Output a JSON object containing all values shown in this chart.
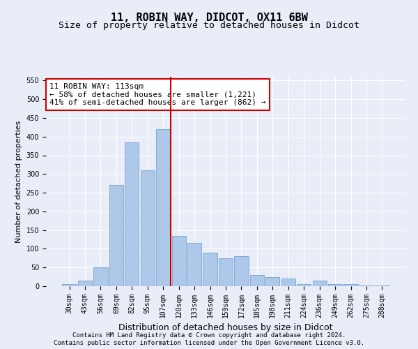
{
  "title_line1": "11, ROBIN WAY, DIDCOT, OX11 6BW",
  "title_line2": "Size of property relative to detached houses in Didcot",
  "xlabel": "Distribution of detached houses by size in Didcot",
  "ylabel": "Number of detached properties",
  "categories": [
    "30sqm",
    "43sqm",
    "56sqm",
    "69sqm",
    "82sqm",
    "95sqm",
    "107sqm",
    "120sqm",
    "133sqm",
    "146sqm",
    "159sqm",
    "172sqm",
    "185sqm",
    "198sqm",
    "211sqm",
    "224sqm",
    "236sqm",
    "249sqm",
    "262sqm",
    "275sqm",
    "288sqm"
  ],
  "values": [
    5,
    15,
    50,
    270,
    385,
    310,
    420,
    135,
    115,
    90,
    75,
    80,
    30,
    25,
    20,
    5,
    15,
    5,
    5,
    2,
    2
  ],
  "bar_color": "#adc8e8",
  "bar_edge_color": "#6699cc",
  "vline_color": "#cc0000",
  "vline_x_index": 7,
  "annotation_text": "11 ROBIN WAY: 113sqm\n← 58% of detached houses are smaller (1,221)\n41% of semi-detached houses are larger (862) →",
  "annotation_box_facecolor": "#ffffff",
  "annotation_box_edgecolor": "#cc0000",
  "ylim": [
    0,
    560
  ],
  "yticks": [
    0,
    50,
    100,
    150,
    200,
    250,
    300,
    350,
    400,
    450,
    500,
    550
  ],
  "background_color": "#e8edf8",
  "plot_bg_color": "#e8edf8",
  "footer_line1": "Contains HM Land Registry data © Crown copyright and database right 2024.",
  "footer_line2": "Contains public sector information licensed under the Open Government Licence v3.0.",
  "title_fontsize": 11,
  "subtitle_fontsize": 9.5,
  "xlabel_fontsize": 9,
  "ylabel_fontsize": 8,
  "tick_fontsize": 7,
  "annotation_fontsize": 8,
  "footer_fontsize": 6.5
}
